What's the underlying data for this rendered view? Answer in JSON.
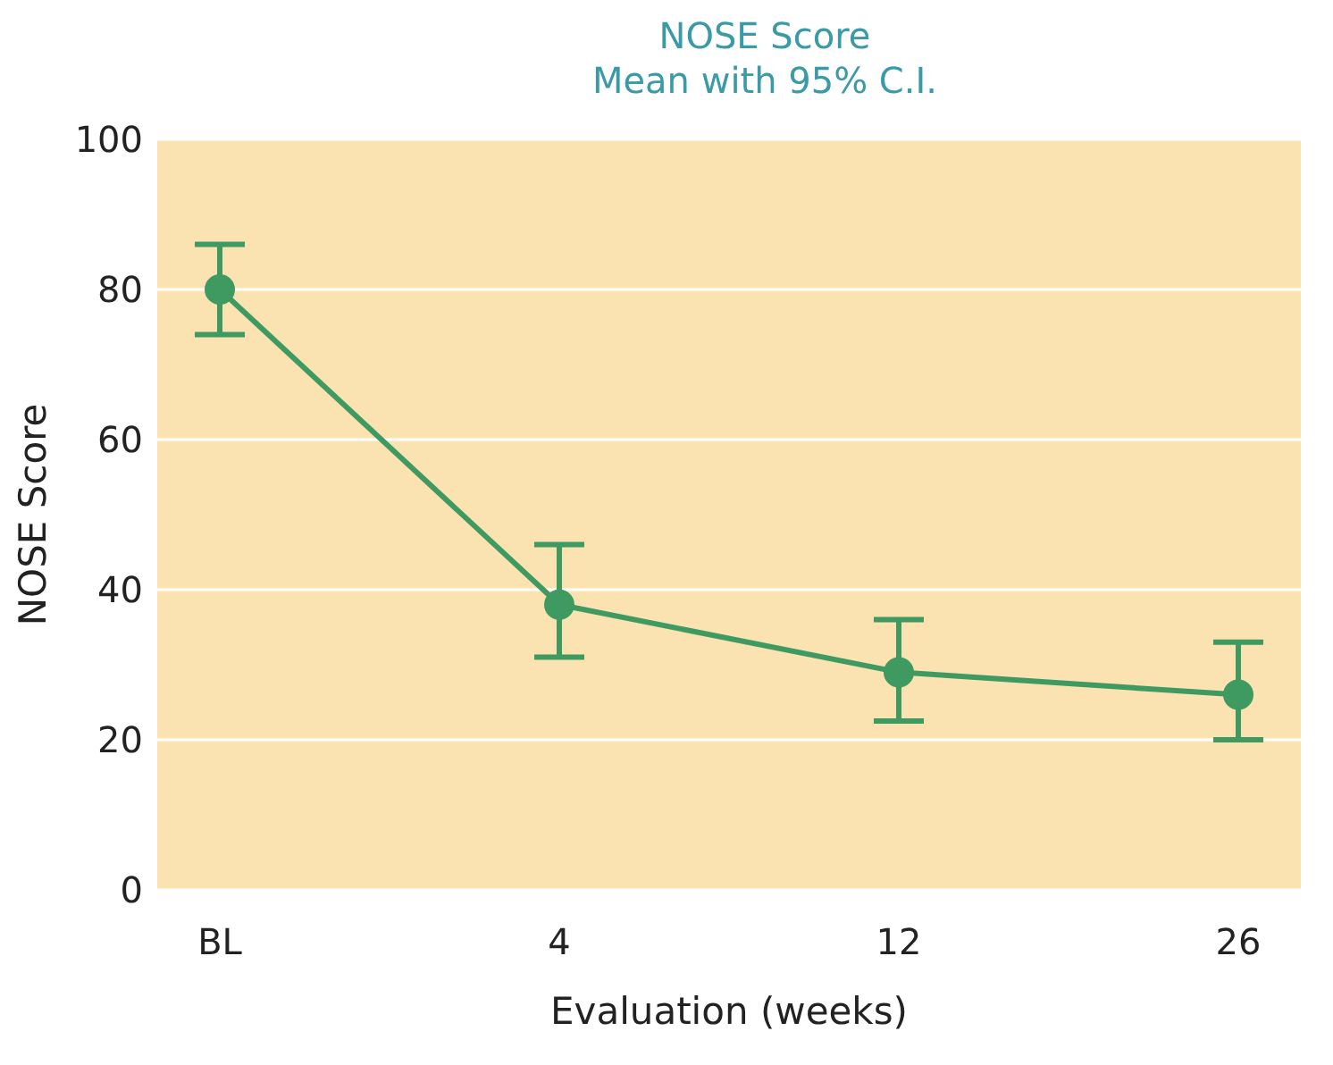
{
  "chart_data": {
    "type": "line",
    "title": "NOSE Score",
    "subtitle": "Mean with 95% C.I.",
    "xlabel": "Evaluation (weeks)",
    "ylabel": "NOSE Score",
    "categories": [
      "BL",
      "4",
      "12",
      "26"
    ],
    "series": [
      {
        "color": "#3f9a62",
        "values": [
          80,
          38,
          29,
          26
        ],
        "errors": [
          [
            74,
            86
          ],
          [
            31,
            46
          ],
          [
            22.5,
            36
          ],
          [
            20,
            33
          ]
        ]
      }
    ],
    "ylim": [
      0,
      100
    ],
    "yticks": [
      0,
      20,
      40,
      60,
      80,
      100
    ],
    "grid": "y",
    "marker": "circle",
    "line_style": "solid",
    "legend": false
  }
}
